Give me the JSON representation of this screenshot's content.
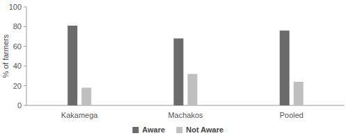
{
  "chart_data": {
    "type": "bar",
    "categories": [
      "Kakamega",
      "Machakos",
      "Pooled"
    ],
    "series": [
      {
        "name": "Aware",
        "color": "#6b6b6b",
        "values": [
          81,
          68,
          76
        ]
      },
      {
        "name": "Not Aware",
        "color": "#bfbfbf",
        "values": [
          18,
          32,
          24
        ]
      }
    ],
    "y_label": "% of farmers",
    "ylim": [
      0,
      100
    ],
    "yticks": [
      0,
      20,
      40,
      60,
      80,
      100
    ],
    "grid": false,
    "legend": "bottom"
  }
}
